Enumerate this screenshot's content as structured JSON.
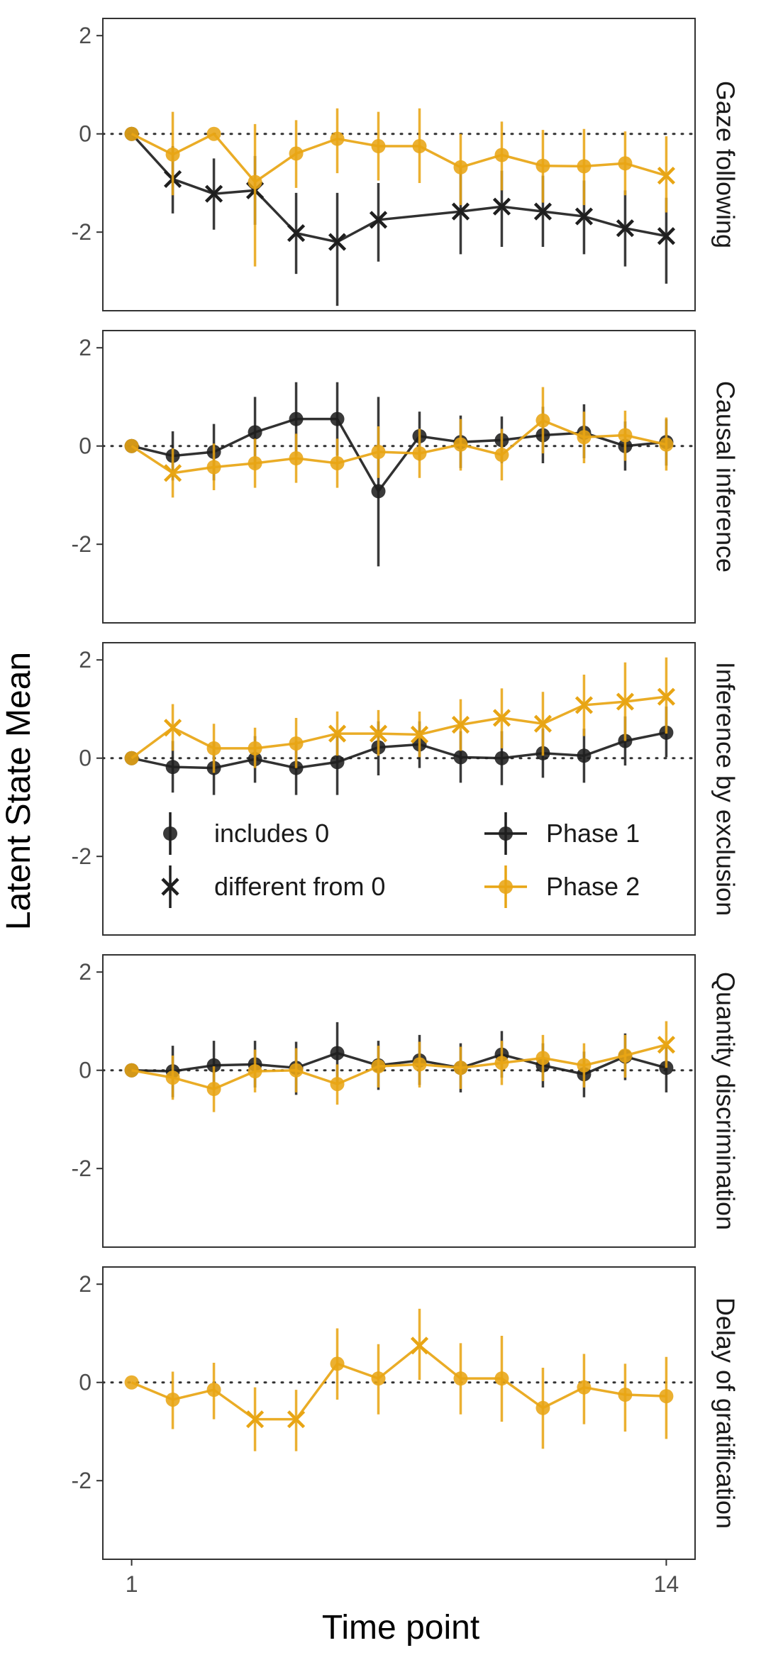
{
  "chart_data": {
    "type": "line",
    "xlabel": "Time point",
    "ylabel": "Latent State Mean",
    "x": [
      1,
      2,
      3,
      4,
      5,
      6,
      7,
      8,
      9,
      10,
      11,
      12,
      13,
      14
    ],
    "x_ticks": [
      "1",
      "14"
    ],
    "y_ticks": [
      "2",
      "0",
      "-2"
    ],
    "ylim": [
      -3.6,
      2.35
    ],
    "xlim": [
      0.3,
      14.7
    ],
    "reference_line": 0,
    "grid": false,
    "colors": {
      "Phase 1": "#1f1f1f",
      "Phase 2": "#e8a514"
    },
    "legend": {
      "placement": "inside third panel, bottom",
      "shape_entries": [
        "includes 0",
        "different from 0"
      ],
      "series_entries": [
        "Phase 1",
        "Phase 2"
      ]
    },
    "panels": [
      {
        "name": "Gaze following",
        "series": [
          {
            "name": "Phase 1",
            "values": [
              0,
              -0.92,
              -1.22,
              -1.15,
              -2.02,
              -2.2,
              -1.75,
              -1.58,
              -1.48,
              -1.58,
              -1.68,
              -1.92,
              -2.08
            ],
            "lower": [
              0,
              -1.62,
              -1.95,
              -1.85,
              -2.85,
              -3.5,
              -2.6,
              -2.45,
              -2.3,
              -2.3,
              -2.45,
              -2.7,
              -3.05
            ],
            "upper": [
              0,
              -0.25,
              -0.5,
              -0.45,
              -1.2,
              -1.2,
              -1.0,
              -0.7,
              -0.75,
              -0.85,
              -0.95,
              -1.15,
              -1.3
            ],
            "shape": [
              "circle",
              "x",
              "x",
              "x",
              "x",
              "x",
              "x",
              "x",
              "x",
              "x",
              "x",
              "x",
              "x"
            ],
            "x": [
              1,
              2,
              3,
              4,
              5,
              6,
              7,
              9,
              10,
              11,
              12,
              13,
              14
            ]
          },
          {
            "name": "Phase 2",
            "values": [
              0,
              -0.42,
              0,
              -0.98,
              -0.4,
              -0.1,
              -0.25,
              -0.25,
              -0.68,
              -0.43,
              -0.65,
              -0.66,
              -0.6,
              -0.85
            ],
            "lower": [
              0,
              -1.25,
              0,
              -2.7,
              -1.1,
              -0.8,
              -0.95,
              -1.0,
              -1.45,
              -1.15,
              -1.4,
              -1.45,
              -1.25,
              -1.6
            ],
            "upper": [
              0,
              0.45,
              0,
              0.2,
              0.28,
              0.52,
              0.45,
              0.52,
              0.0,
              0.25,
              0.08,
              0.1,
              0.05,
              -0.05
            ],
            "shape": [
              "circle",
              "circle",
              "circle",
              "circle",
              "circle",
              "circle",
              "circle",
              "circle",
              "circle",
              "circle",
              "circle",
              "circle",
              "circle",
              "x"
            ],
            "x": [
              1,
              2,
              3,
              4,
              5,
              6,
              7,
              8,
              9,
              10,
              11,
              12,
              13,
              14
            ]
          }
        ]
      },
      {
        "name": "Causal inference",
        "series": [
          {
            "name": "Phase 1",
            "values": [
              0,
              -0.2,
              -0.12,
              0.28,
              0.55,
              0.55,
              -0.92,
              0.2,
              0.08,
              0.12,
              0.22,
              0.27,
              0.0,
              0.08
            ],
            "lower": [
              0,
              -0.7,
              -0.7,
              -0.45,
              -0.2,
              -0.2,
              -2.45,
              -0.3,
              -0.45,
              -0.35,
              -0.35,
              -0.25,
              -0.5,
              -0.4
            ],
            "upper": [
              0,
              0.3,
              0.45,
              1.0,
              1.3,
              1.3,
              1.0,
              0.7,
              0.62,
              0.6,
              0.8,
              0.85,
              0.5,
              0.55
            ],
            "shape": [
              "circle",
              "circle",
              "circle",
              "circle",
              "circle",
              "circle",
              "circle",
              "circle",
              "circle",
              "circle",
              "circle",
              "circle",
              "circle",
              "circle"
            ],
            "x": [
              1,
              2,
              3,
              4,
              5,
              6,
              7,
              8,
              9,
              10,
              11,
              12,
              13,
              14
            ]
          },
          {
            "name": "Phase 2",
            "values": [
              0,
              -0.55,
              -0.43,
              -0.35,
              -0.25,
              -0.35,
              -0.12,
              -0.15,
              0.03,
              -0.18,
              0.52,
              0.18,
              0.22,
              0.03
            ],
            "lower": [
              0,
              -1.05,
              -0.9,
              -0.85,
              -0.75,
              -0.85,
              -0.65,
              -0.65,
              -0.5,
              -0.7,
              -0.15,
              -0.35,
              -0.3,
              -0.5
            ],
            "upper": [
              0,
              -0.05,
              0.05,
              0.15,
              0.25,
              0.15,
              0.4,
              0.35,
              0.55,
              0.35,
              1.2,
              0.7,
              0.72,
              0.58
            ],
            "shape": [
              "circle",
              "x",
              "circle",
              "circle",
              "circle",
              "circle",
              "circle",
              "circle",
              "circle",
              "circle",
              "circle",
              "circle",
              "circle",
              "circle"
            ],
            "x": [
              1,
              2,
              3,
              4,
              5,
              6,
              7,
              8,
              9,
              10,
              11,
              12,
              13,
              14
            ]
          }
        ]
      },
      {
        "name": "Inference by exclusion",
        "series": [
          {
            "name": "Phase 1",
            "values": [
              0,
              -0.18,
              -0.2,
              -0.02,
              -0.2,
              -0.08,
              0.22,
              0.28,
              0.02,
              0.0,
              0.1,
              0.05,
              0.35,
              0.52
            ],
            "lower": [
              0,
              -0.7,
              -0.75,
              -0.5,
              -0.75,
              -0.75,
              -0.35,
              -0.2,
              -0.5,
              -0.55,
              -0.4,
              -0.5,
              -0.15,
              0.02
            ],
            "upper": [
              0,
              0.35,
              0.32,
              0.45,
              0.35,
              0.55,
              0.75,
              0.75,
              0.55,
              0.55,
              0.6,
              0.6,
              0.85,
              1.05
            ],
            "shape": [
              "circle",
              "circle",
              "circle",
              "circle",
              "circle",
              "circle",
              "circle",
              "circle",
              "circle",
              "circle",
              "circle",
              "circle",
              "circle",
              "circle"
            ],
            "x": [
              1,
              2,
              3,
              4,
              5,
              6,
              7,
              8,
              9,
              10,
              11,
              12,
              13,
              14
            ]
          },
          {
            "name": "Phase 2",
            "values": [
              0,
              0.62,
              0.2,
              0.2,
              0.3,
              0.5,
              0.5,
              0.48,
              0.68,
              0.82,
              0.7,
              1.08,
              1.15,
              1.25
            ],
            "lower": [
              0,
              0.15,
              -0.3,
              -0.2,
              -0.2,
              0.05,
              0.05,
              0.02,
              0.15,
              0.2,
              0.05,
              0.45,
              0.35,
              0.5
            ],
            "upper": [
              0,
              1.1,
              0.7,
              0.62,
              0.82,
              0.95,
              0.98,
              0.95,
              1.2,
              1.42,
              1.35,
              1.7,
              1.95,
              2.05
            ],
            "shape": [
              "circle",
              "x",
              "circle",
              "circle",
              "circle",
              "x",
              "x",
              "x",
              "x",
              "x",
              "x",
              "x",
              "x",
              "x"
            ],
            "x": [
              1,
              2,
              3,
              4,
              5,
              6,
              7,
              8,
              9,
              10,
              11,
              12,
              13,
              14
            ]
          }
        ]
      },
      {
        "name": "Quantity discrimination",
        "series": [
          {
            "name": "Phase 1",
            "values": [
              0,
              -0.02,
              0.1,
              0.12,
              0.05,
              0.35,
              0.1,
              0.2,
              0.05,
              0.32,
              0.1,
              -0.08,
              0.28,
              0.05
            ],
            "lower": [
              0,
              -0.55,
              -0.4,
              -0.35,
              -0.5,
              -0.25,
              -0.4,
              -0.3,
              -0.45,
              -0.15,
              -0.35,
              -0.55,
              -0.2,
              -0.45
            ],
            "upper": [
              0,
              0.5,
              0.6,
              0.6,
              0.58,
              0.98,
              0.6,
              0.72,
              0.55,
              0.8,
              0.55,
              0.38,
              0.75,
              0.55
            ],
            "shape": [
              "circle",
              "circle",
              "circle",
              "circle",
              "circle",
              "circle",
              "circle",
              "circle",
              "circle",
              "circle",
              "circle",
              "circle",
              "circle",
              "circle"
            ],
            "x": [
              1,
              2,
              3,
              4,
              5,
              6,
              7,
              8,
              9,
              10,
              11,
              12,
              13,
              14
            ]
          },
          {
            "name": "Phase 2",
            "values": [
              0,
              -0.15,
              -0.38,
              -0.02,
              0.0,
              -0.28,
              0.08,
              0.12,
              0.05,
              0.15,
              0.25,
              0.1,
              0.3,
              0.52
            ],
            "lower": [
              0,
              -0.6,
              -0.85,
              -0.45,
              -0.45,
              -0.7,
              -0.35,
              -0.35,
              -0.38,
              -0.3,
              -0.22,
              -0.35,
              -0.15,
              0.05
            ],
            "upper": [
              0,
              0.3,
              0.08,
              0.42,
              0.45,
              0.12,
              0.5,
              0.58,
              0.48,
              0.6,
              0.72,
              0.55,
              0.72,
              1.0
            ],
            "shape": [
              "circle",
              "circle",
              "circle",
              "circle",
              "circle",
              "circle",
              "circle",
              "circle",
              "circle",
              "circle",
              "circle",
              "circle",
              "circle",
              "x"
            ],
            "x": [
              1,
              2,
              3,
              4,
              5,
              6,
              7,
              8,
              9,
              10,
              11,
              12,
              13,
              14
            ]
          }
        ]
      },
      {
        "name": "Delay of gratification",
        "series": [
          {
            "name": "Phase 2",
            "values": [
              0,
              -0.35,
              -0.15,
              -0.75,
              -0.75,
              0.38,
              0.08,
              0.75,
              0.08,
              0.08,
              -0.52,
              -0.1,
              -0.25,
              -0.28
            ],
            "lower": [
              0,
              -0.95,
              -0.75,
              -1.4,
              -1.4,
              -0.35,
              -0.65,
              0.05,
              -0.65,
              -0.8,
              -1.35,
              -0.85,
              -1.0,
              -1.15
            ],
            "upper": [
              0,
              0.22,
              0.4,
              -0.1,
              -0.15,
              1.1,
              0.78,
              1.5,
              0.8,
              0.95,
              0.3,
              0.58,
              0.38,
              0.52
            ],
            "shape": [
              "circle",
              "circle",
              "circle",
              "x",
              "x",
              "circle",
              "circle",
              "x",
              "circle",
              "circle",
              "circle",
              "circle",
              "circle",
              "circle"
            ],
            "x": [
              1,
              2,
              3,
              4,
              5,
              6,
              7,
              8,
              9,
              10,
              11,
              12,
              13,
              14
            ]
          }
        ]
      }
    ]
  }
}
